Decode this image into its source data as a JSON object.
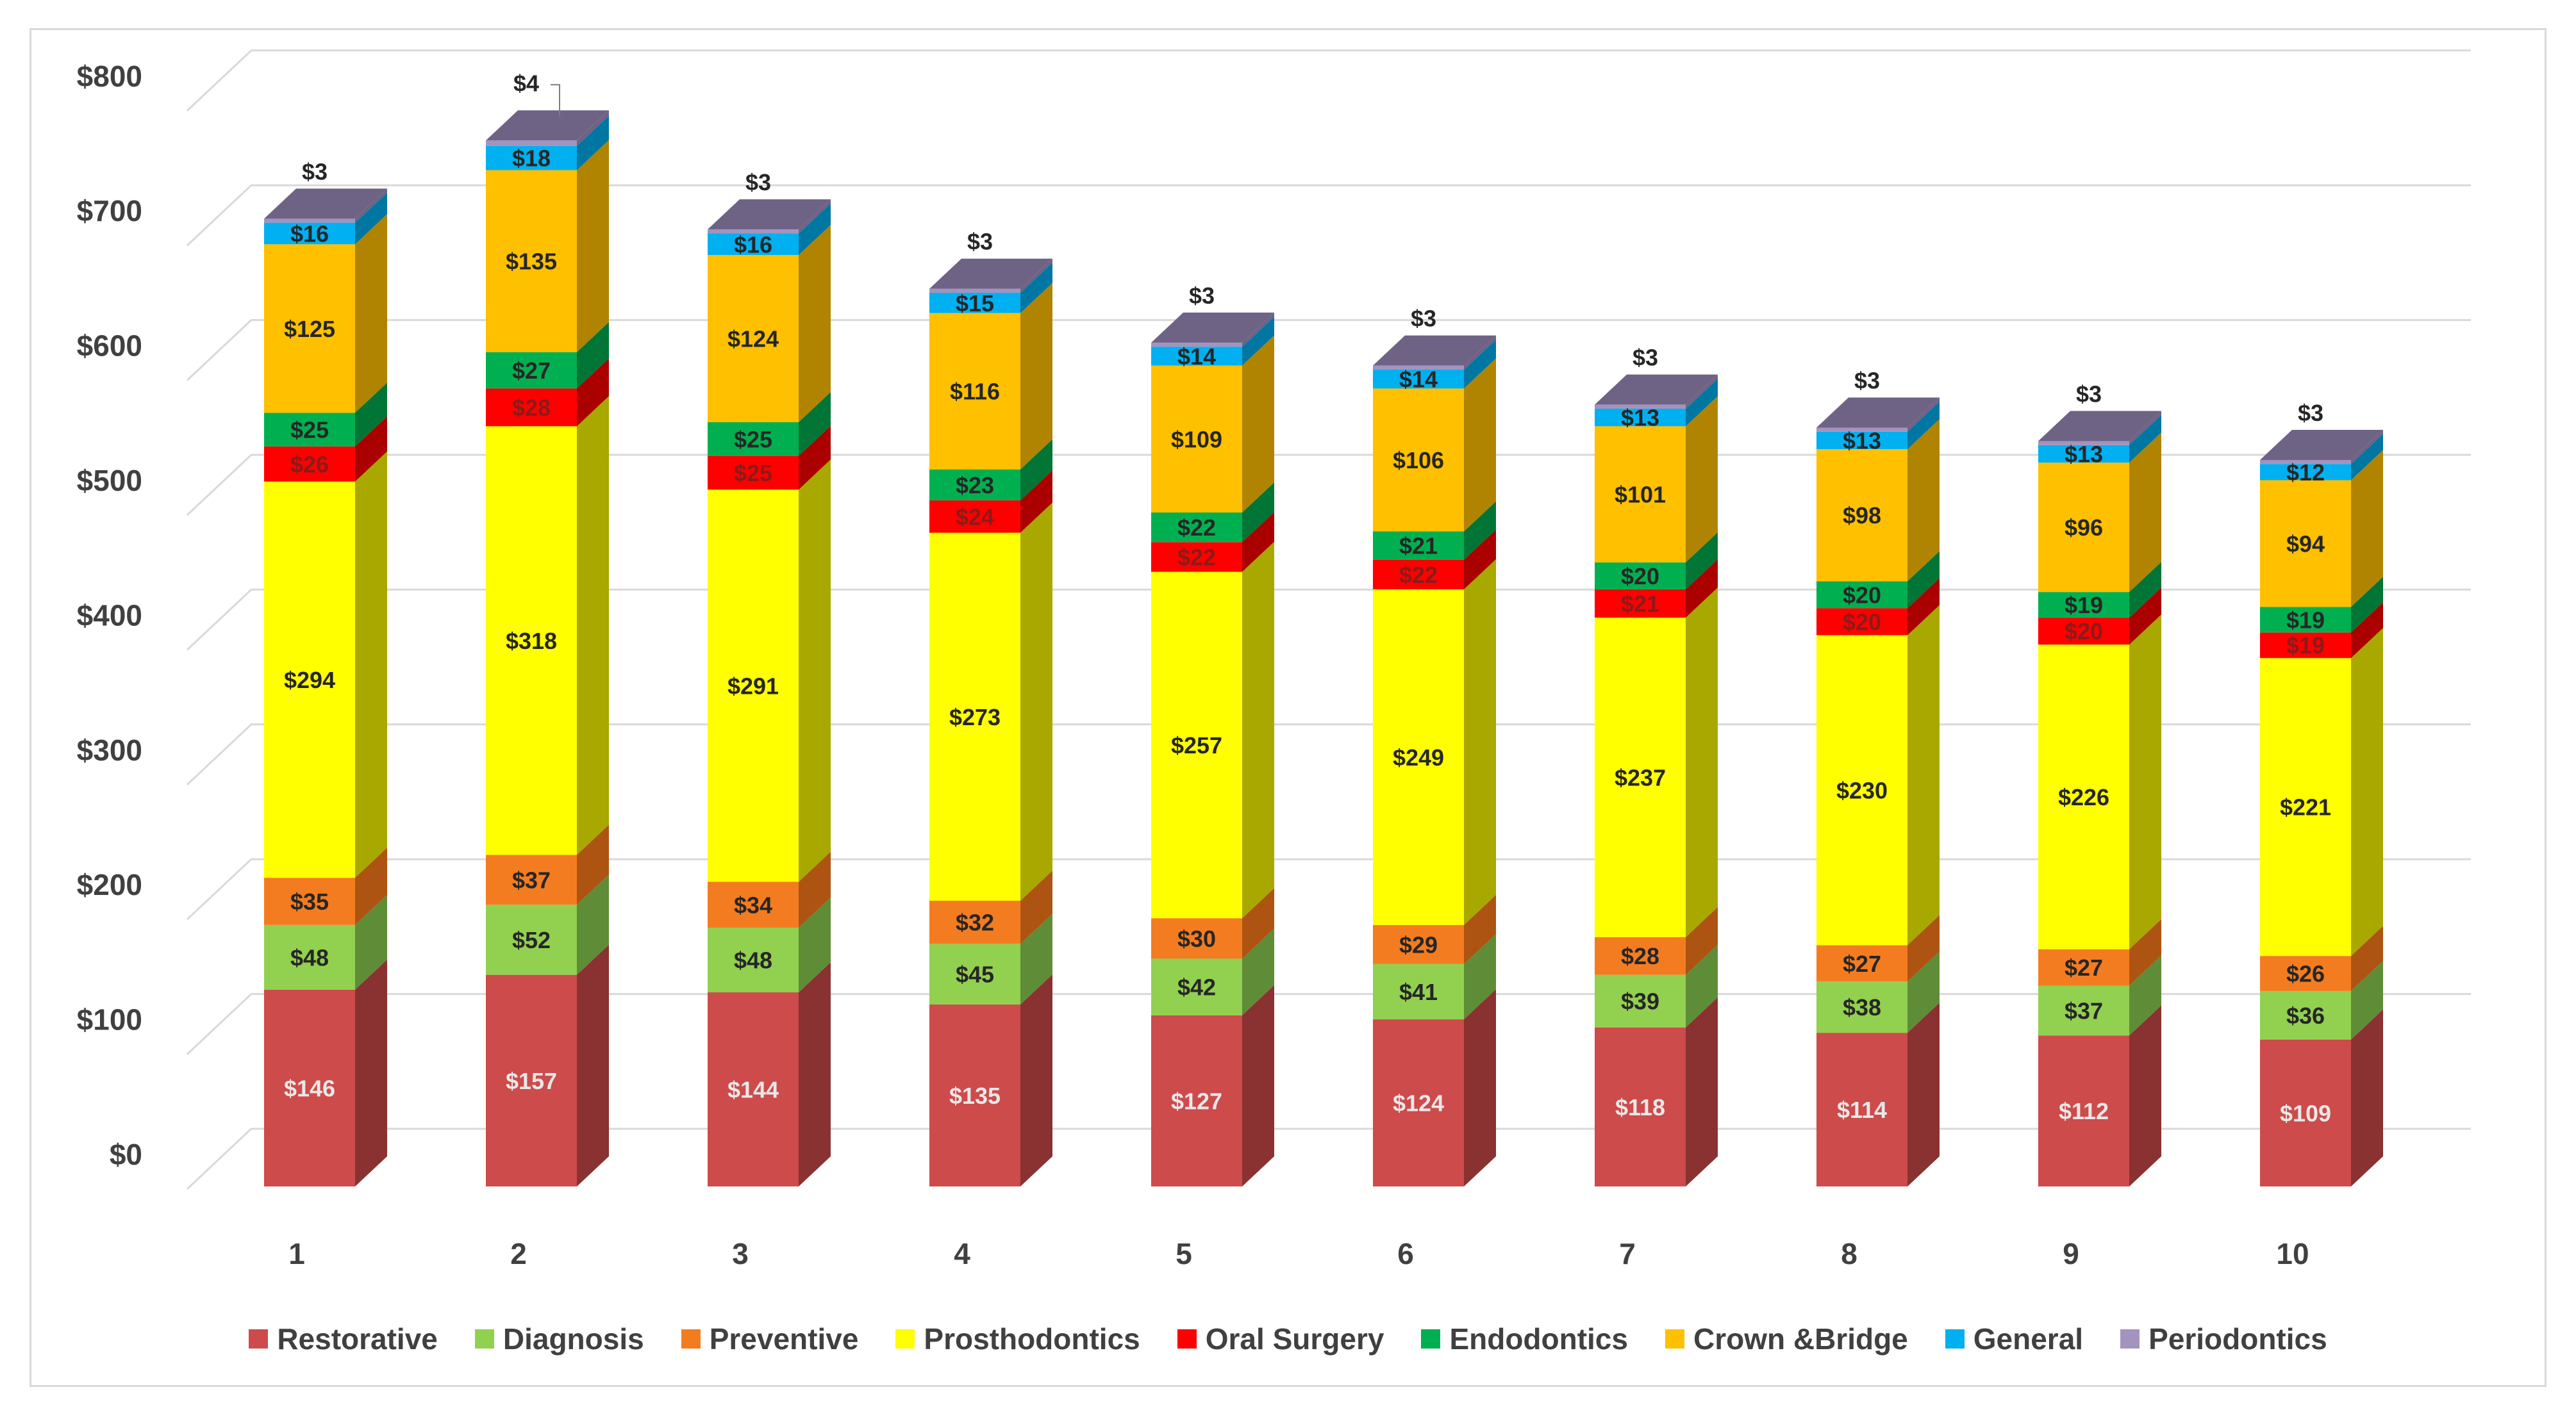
{
  "chart_data": {
    "type": "bar",
    "stacked": true,
    "style": "3d-column",
    "title": "",
    "xlabel": "",
    "ylabel": "",
    "ylim": [
      0,
      800
    ],
    "yticks": [
      0,
      100,
      200,
      300,
      400,
      500,
      600,
      700,
      800
    ],
    "ytick_labels": [
      "$0",
      "$100",
      "$200",
      "$300",
      "$400",
      "$500",
      "$600",
      "$700",
      "$800"
    ],
    "grid": true,
    "legend_position": "bottom",
    "categories": [
      "1",
      "2",
      "3",
      "4",
      "5",
      "6",
      "7",
      "8",
      "9",
      "10"
    ],
    "series": [
      {
        "name": "Restorative",
        "color": "#cd4b4b",
        "side_color": "#8a3131",
        "label_color": "#e8e8e8",
        "values": [
          146,
          157,
          144,
          135,
          127,
          124,
          118,
          114,
          112,
          109
        ],
        "labels": [
          "$146",
          "$157",
          "$144",
          "$135",
          "$127",
          "$124",
          "$118",
          "$114",
          "$112",
          "$109"
        ]
      },
      {
        "name": "Diagnosis",
        "color": "#92d050",
        "side_color": "#5f8c37",
        "label_color": "#262626",
        "values": [
          48,
          52,
          48,
          45,
          42,
          41,
          39,
          38,
          37,
          36
        ],
        "labels": [
          "$48",
          "$52",
          "$48",
          "$45",
          "$42",
          "$41",
          "$39",
          "$38",
          "$37",
          "$36"
        ]
      },
      {
        "name": "Preventive",
        "color": "#f47c20",
        "side_color": "#ad5412",
        "label_color": "#262626",
        "values": [
          35,
          37,
          34,
          32,
          30,
          29,
          28,
          27,
          27,
          26
        ],
        "labels": [
          "$35",
          "$37",
          "$34",
          "$32",
          "$30",
          "$29",
          "$28",
          "$27",
          "$27",
          "$26"
        ]
      },
      {
        "name": "Prosthodontics",
        "color": "#ffff00",
        "side_color": "#a8a800",
        "label_color": "#262626",
        "values": [
          294,
          318,
          291,
          273,
          257,
          249,
          237,
          230,
          226,
          221
        ],
        "labels": [
          "$294",
          "$318",
          "$291",
          "$273",
          "$257",
          "$249",
          "$237",
          "$230",
          "$226",
          "$221"
        ]
      },
      {
        "name": "Oral Surgery",
        "color": "#ff0000",
        "side_color": "#aa0000",
        "label_color": "#8c1a1a",
        "values": [
          26,
          28,
          25,
          24,
          22,
          22,
          21,
          20,
          20,
          19
        ],
        "labels": [
          "$26",
          "$28",
          "$25",
          "$24",
          "$22",
          "$22",
          "$21",
          "$20",
          "$20",
          "$19"
        ]
      },
      {
        "name": "Endodontics",
        "color": "#00b050",
        "side_color": "#007535",
        "label_color": "#262626",
        "values": [
          25,
          27,
          25,
          23,
          22,
          21,
          20,
          20,
          19,
          19
        ],
        "labels": [
          "$25",
          "$27",
          "$25",
          "$23",
          "$22",
          "$21",
          "$20",
          "$20",
          "$19",
          "$19"
        ]
      },
      {
        "name": "Crown &Bridge",
        "color": "#ffc000",
        "side_color": "#b08400",
        "label_color": "#262626",
        "values": [
          125,
          135,
          124,
          116,
          109,
          106,
          101,
          98,
          96,
          94
        ],
        "labels": [
          "$125",
          "$135",
          "$124",
          "$116",
          "$109",
          "$106",
          "$101",
          "$98",
          "$96",
          "$94"
        ]
      },
      {
        "name": "General",
        "color": "#00b0f0",
        "side_color": "#0076a3",
        "label_color": "#262626",
        "values": [
          16,
          18,
          16,
          15,
          14,
          14,
          13,
          13,
          13,
          12
        ],
        "labels": [
          "$16",
          "$18",
          "$16",
          "$15",
          "$14",
          "$14",
          "$13",
          "$13",
          "$13",
          "$12"
        ]
      },
      {
        "name": "Periodontics",
        "color": "#a393bf",
        "side_color": "#6e6385",
        "label_color": "#262626",
        "values": [
          3,
          4,
          3,
          3,
          3,
          3,
          3,
          3,
          3,
          3
        ],
        "labels": [
          "$3",
          "$4",
          "$3",
          "$3",
          "$3",
          "$3",
          "$3",
          "$3",
          "$3",
          "$3"
        ]
      }
    ]
  }
}
